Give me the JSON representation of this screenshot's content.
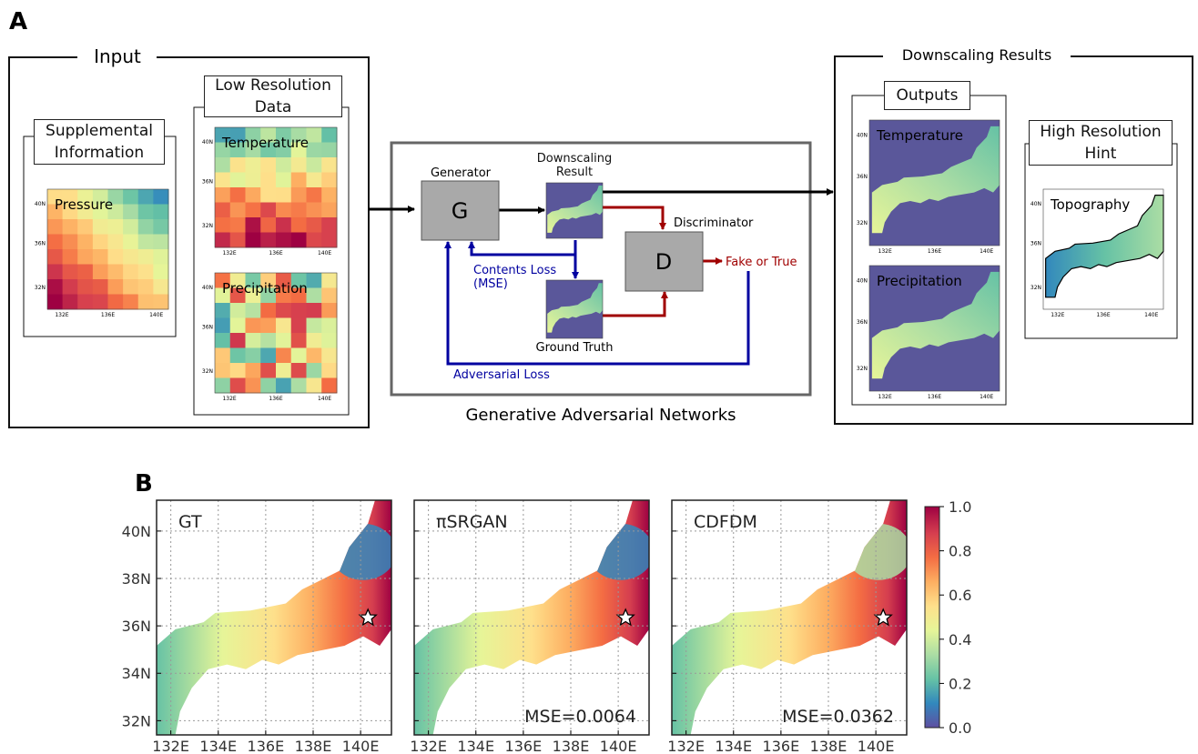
{
  "panel_a": {
    "label": "A",
    "input": {
      "title": "Input",
      "supplemental": {
        "title": "Supplemental Information",
        "map": "Pressure"
      },
      "low_resolution": {
        "title": "Low Resolution Data",
        "maps": [
          "Temperature",
          "Precipitation"
        ]
      }
    },
    "gan": {
      "title": "Generative Adversarial Networks",
      "generator_label": "Generator",
      "generator": "G",
      "downscaling_result": "Downscaling Result",
      "discriminator_label": "Discriminator",
      "discriminator": "D",
      "decision": "Fake or True",
      "contents_loss": "Contents Loss (MSE)",
      "ground_truth": "Ground Truth",
      "adversarial_loss": "Adversarial Loss"
    },
    "results": {
      "title": "Downscaling Results",
      "outputs": {
        "title": "Outputs",
        "maps": [
          "Temperature",
          "Precipitation"
        ]
      },
      "hint": {
        "title": "High Resolution Hint",
        "map": "Topography"
      }
    },
    "mini_map_ticks": {
      "lat": [
        "40N",
        "36N",
        "32N"
      ],
      "lon": [
        "132E",
        "136E",
        "140E"
      ]
    }
  },
  "panel_b": {
    "label": "B",
    "xlim": [
      131.4,
      141.3
    ],
    "ylim": [
      31.4,
      41.3
    ],
    "xticks": [
      {
        "value": 132,
        "label": "132E"
      },
      {
        "value": 134,
        "label": "134E"
      },
      {
        "value": 136,
        "label": "136E"
      },
      {
        "value": 138,
        "label": "138E"
      },
      {
        "value": 140,
        "label": "140E"
      }
    ],
    "yticks": [
      {
        "value": 32,
        "label": "32N"
      },
      {
        "value": 34,
        "label": "34N"
      },
      {
        "value": 36,
        "label": "36N"
      },
      {
        "value": 38,
        "label": "38N"
      },
      {
        "value": 40,
        "label": "40N"
      }
    ],
    "grid": true,
    "maps": [
      {
        "title": "GT"
      },
      {
        "title": "πSRGAN",
        "mse": "MSE=0.0064"
      },
      {
        "title": "CDFDM",
        "mse": "MSE=0.0362"
      }
    ],
    "colorbar": {
      "lim": [
        0,
        1
      ],
      "ticks": [
        {
          "value": 0,
          "label": "0.0"
        },
        {
          "value": 0.2,
          "label": "0.2"
        },
        {
          "value": 0.4,
          "label": "0.4"
        },
        {
          "value": 0.6,
          "label": "0.6"
        },
        {
          "value": 0.8,
          "label": "0.8"
        },
        {
          "value": 1,
          "label": "1.0"
        }
      ]
    }
  }
}
